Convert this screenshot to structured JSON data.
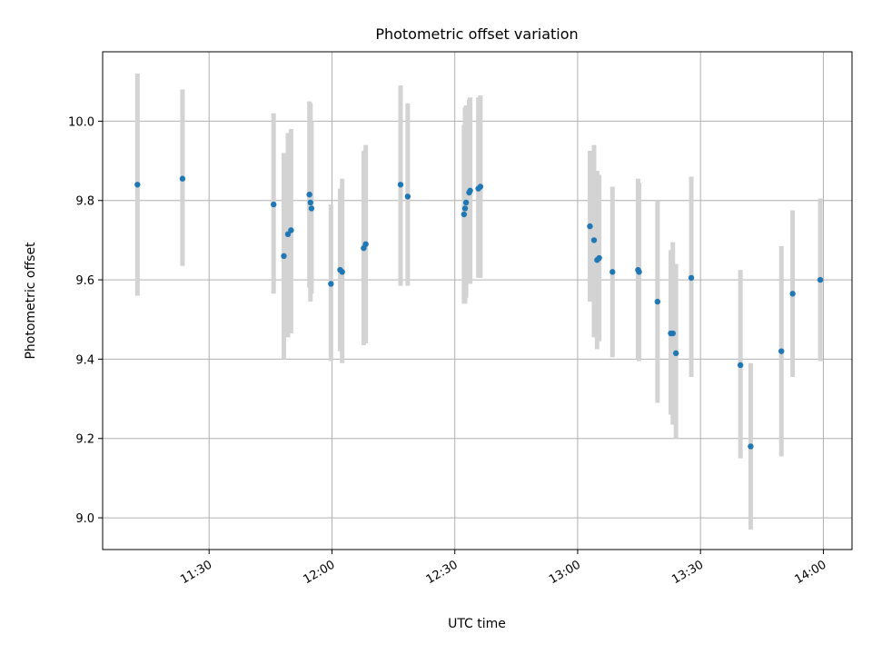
{
  "chart_data": {
    "type": "scatter",
    "title": "Photometric offset variation",
    "xlabel": "UTC time",
    "ylabel": "Photometric offset",
    "x_ticks": [
      "11:30",
      "12:00",
      "12:30",
      "13:00",
      "13:30",
      "14:00"
    ],
    "y_ticks": [
      "9.0",
      "9.2",
      "9.4",
      "9.6",
      "9.8",
      "10.0"
    ],
    "xlim": [
      "11:04",
      "14:07"
    ],
    "ylim": [
      8.92,
      10.175
    ],
    "grid": true,
    "colors": {
      "point": "#1f77b4",
      "errorbar": "#d3d3d3",
      "grid": "#b0b0b0"
    },
    "series": [
      {
        "points": [
          {
            "x": "11:12:30",
            "y": 9.84,
            "lo": 9.56,
            "hi": 10.12
          },
          {
            "x": "11:23:30",
            "y": 9.855,
            "lo": 9.635,
            "hi": 10.08
          },
          {
            "x": "11:45:45",
            "y": 9.79,
            "lo": 9.565,
            "hi": 10.02
          },
          {
            "x": "11:48:15",
            "y": 9.66,
            "lo": 9.4,
            "hi": 9.92
          },
          {
            "x": "11:49:15",
            "y": 9.715,
            "lo": 9.455,
            "hi": 9.97
          },
          {
            "x": "11:50:00",
            "y": 9.725,
            "lo": 9.465,
            "hi": 9.98
          },
          {
            "x": "11:54:30",
            "y": 9.815,
            "lo": 9.58,
            "hi": 10.05
          },
          {
            "x": "11:54:45",
            "y": 9.795,
            "lo": 9.545,
            "hi": 10.045
          },
          {
            "x": "11:55:00",
            "y": 9.78,
            "lo": 9.565,
            "hi": 10.0
          },
          {
            "x": "11:59:45",
            "y": 9.59,
            "lo": 9.395,
            "hi": 9.79
          },
          {
            "x": "12:02:00",
            "y": 9.625,
            "lo": 9.42,
            "hi": 9.83
          },
          {
            "x": "12:02:30",
            "y": 9.62,
            "lo": 9.39,
            "hi": 9.855
          },
          {
            "x": "12:07:45",
            "y": 9.68,
            "lo": 9.435,
            "hi": 9.925
          },
          {
            "x": "12:08:15",
            "y": 9.69,
            "lo": 9.44,
            "hi": 9.94
          },
          {
            "x": "12:16:45",
            "y": 9.84,
            "lo": 9.585,
            "hi": 10.09
          },
          {
            "x": "12:18:30",
            "y": 9.81,
            "lo": 9.585,
            "hi": 10.045
          },
          {
            "x": "12:32:15",
            "y": 9.765,
            "lo": 9.54,
            "hi": 9.99
          },
          {
            "x": "12:32:30",
            "y": 9.78,
            "lo": 9.54,
            "hi": 10.035
          },
          {
            "x": "12:32:45",
            "y": 9.795,
            "lo": 9.555,
            "hi": 10.04
          },
          {
            "x": "12:33:30",
            "y": 9.82,
            "lo": 9.59,
            "hi": 10.055
          },
          {
            "x": "12:33:45",
            "y": 9.825,
            "lo": 9.59,
            "hi": 10.06
          },
          {
            "x": "12:35:45",
            "y": 9.83,
            "lo": 9.605,
            "hi": 10.06
          },
          {
            "x": "12:36:15",
            "y": 9.835,
            "lo": 9.605,
            "hi": 10.065
          },
          {
            "x": "13:03:00",
            "y": 9.735,
            "lo": 9.545,
            "hi": 9.925
          },
          {
            "x": "13:04:00",
            "y": 9.7,
            "lo": 9.455,
            "hi": 9.94
          },
          {
            "x": "13:04:45",
            "y": 9.65,
            "lo": 9.425,
            "hi": 9.875
          },
          {
            "x": "13:05:15",
            "y": 9.655,
            "lo": 9.445,
            "hi": 9.865
          },
          {
            "x": "13:08:30",
            "y": 9.62,
            "lo": 9.405,
            "hi": 9.835
          },
          {
            "x": "13:14:45",
            "y": 9.625,
            "lo": 9.4,
            "hi": 9.855
          },
          {
            "x": "13:15:00",
            "y": 9.62,
            "lo": 9.395,
            "hi": 9.845
          },
          {
            "x": "13:19:30",
            "y": 9.545,
            "lo": 9.29,
            "hi": 9.8
          },
          {
            "x": "13:22:45",
            "y": 9.465,
            "lo": 9.26,
            "hi": 9.675
          },
          {
            "x": "13:23:15",
            "y": 9.465,
            "lo": 9.235,
            "hi": 9.695
          },
          {
            "x": "13:24:00",
            "y": 9.415,
            "lo": 9.2,
            "hi": 9.64
          },
          {
            "x": "13:27:45",
            "y": 9.605,
            "lo": 9.355,
            "hi": 9.86
          },
          {
            "x": "13:39:45",
            "y": 9.385,
            "lo": 9.15,
            "hi": 9.625
          },
          {
            "x": "13:42:15",
            "y": 9.18,
            "lo": 8.97,
            "hi": 9.39
          },
          {
            "x": "13:49:45",
            "y": 9.42,
            "lo": 9.155,
            "hi": 9.685
          },
          {
            "x": "13:52:30",
            "y": 9.565,
            "lo": 9.355,
            "hi": 9.775
          },
          {
            "x": "13:59:15",
            "y": 9.6,
            "lo": 9.395,
            "hi": 9.805
          }
        ]
      }
    ]
  }
}
